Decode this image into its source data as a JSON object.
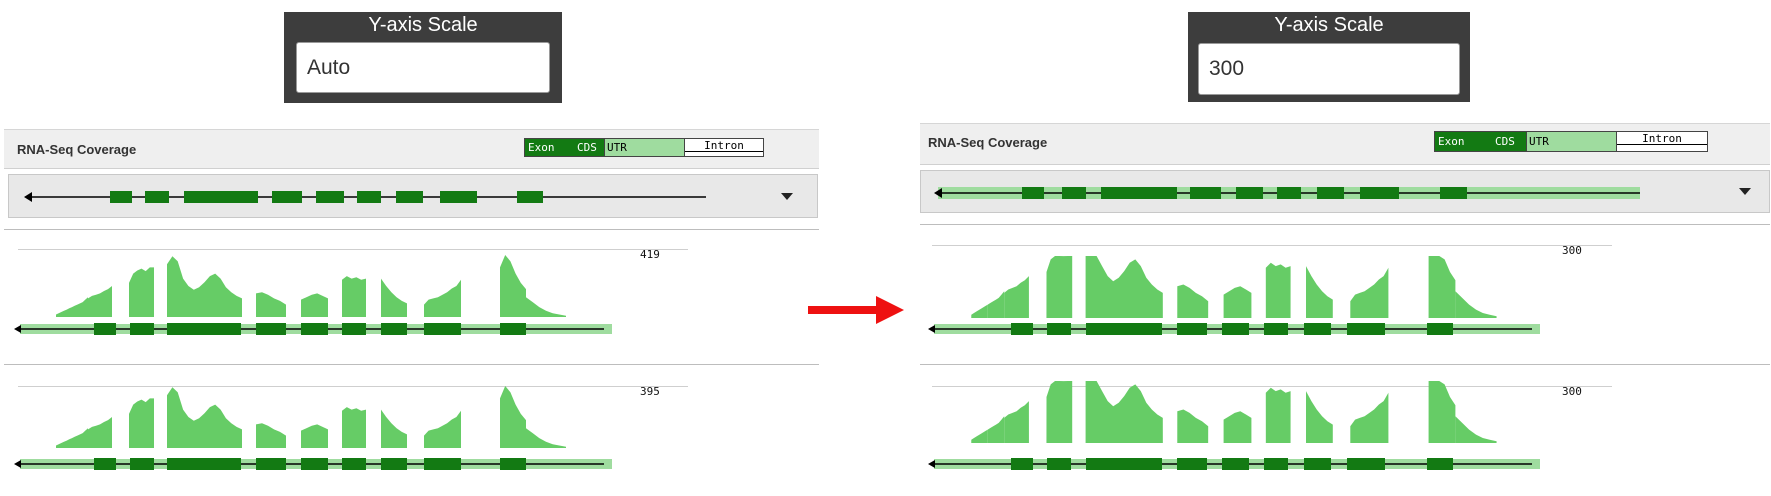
{
  "left": {
    "yscale": {
      "title": "Y-axis Scale",
      "value": "Auto"
    },
    "track": {
      "title": "RNA-Seq Coverage",
      "legend": {
        "exon": "Exon",
        "cds": "CDS",
        "utr": "UTR",
        "intron": "Intron"
      }
    },
    "coverage": [
      {
        "max_label": "419"
      },
      {
        "max_label": "395"
      }
    ]
  },
  "right": {
    "yscale": {
      "title": "Y-axis Scale",
      "value": "300"
    },
    "track": {
      "title": "RNA-Seq Coverage",
      "legend": {
        "exon": "Exon",
        "cds": "CDS",
        "utr": "UTR",
        "intron": "Intron"
      }
    },
    "coverage": [
      {
        "max_label": "300"
      },
      {
        "max_label": "300"
      }
    ]
  },
  "colors": {
    "exon": "#137a13",
    "utr": "#9fdc9f",
    "coverage_fill": "#66cc66",
    "arrow": "#ee1111"
  },
  "icons": {
    "dropdown": "caret-down-icon",
    "arrow": "right-arrow-icon"
  }
}
